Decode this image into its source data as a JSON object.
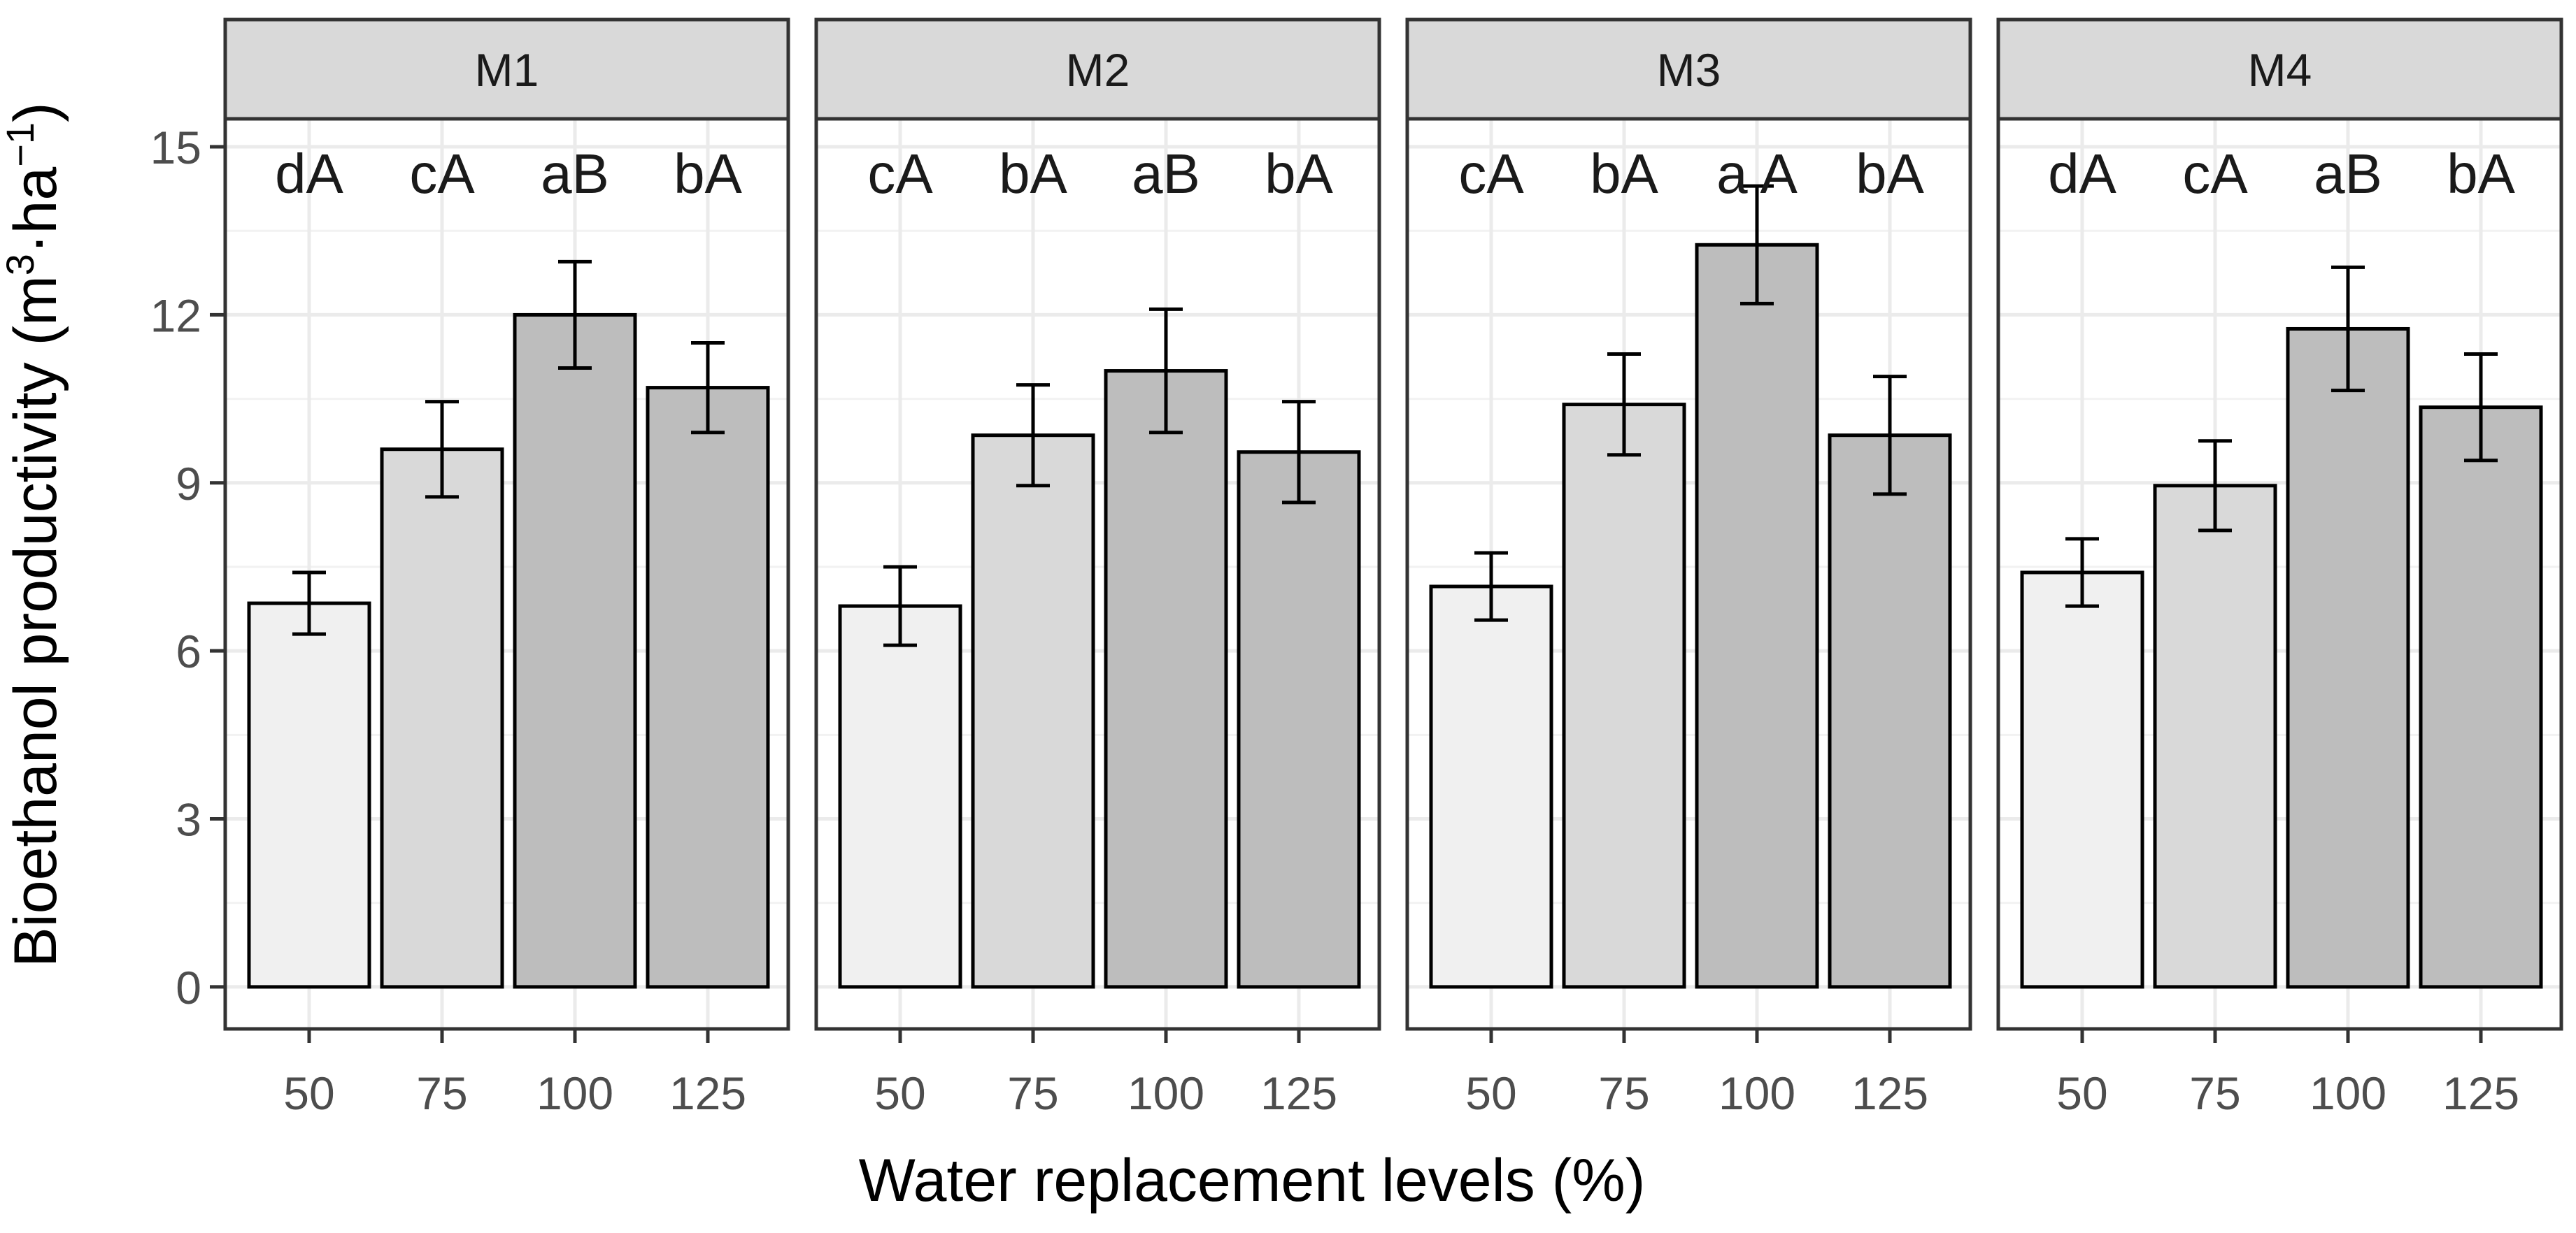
{
  "chart_data": {
    "type": "bar",
    "xlabel": "Water replacement levels (%)",
    "ylabel_main": "Bioethanol productivity (m",
    "ylabel_sup1": "3",
    "ylabel_mid": "·ha",
    "ylabel_sup2": "−1",
    "ylabel_end": ")",
    "ylim": [
      -0.75,
      15.5
    ],
    "yticks": [
      0,
      3,
      6,
      9,
      12,
      15
    ],
    "ytick_labels": [
      "0",
      "3",
      "6",
      "9",
      "12",
      "15"
    ],
    "categories": [
      "50",
      "75",
      "100",
      "125"
    ],
    "bar_colors": [
      "#f0f0f0",
      "#d9d9d9",
      "#bdbdbd",
      "#bdbdbd"
    ],
    "panels": [
      {
        "name": "M1",
        "values": [
          6.85,
          9.6,
          12.0,
          10.7
        ],
        "errors": [
          0.55,
          0.85,
          0.95,
          0.8
        ],
        "labels": [
          "dA",
          "cA",
          "aB",
          "bA"
        ]
      },
      {
        "name": "M2",
        "values": [
          6.8,
          9.85,
          11.0,
          9.55
        ],
        "errors": [
          0.7,
          0.9,
          1.1,
          0.9
        ],
        "labels": [
          "cA",
          "bA",
          "aB",
          "bA"
        ]
      },
      {
        "name": "M3",
        "values": [
          7.15,
          10.4,
          13.25,
          9.85
        ],
        "errors": [
          0.6,
          0.9,
          1.05,
          1.05
        ],
        "labels": [
          "cA",
          "bA",
          "a A",
          "bA"
        ]
      },
      {
        "name": "M4",
        "values": [
          7.4,
          8.95,
          11.75,
          10.35
        ],
        "errors": [
          0.6,
          0.8,
          1.1,
          0.95
        ],
        "labels": [
          "dA",
          "cA",
          "aB",
          "bA"
        ]
      }
    ]
  }
}
